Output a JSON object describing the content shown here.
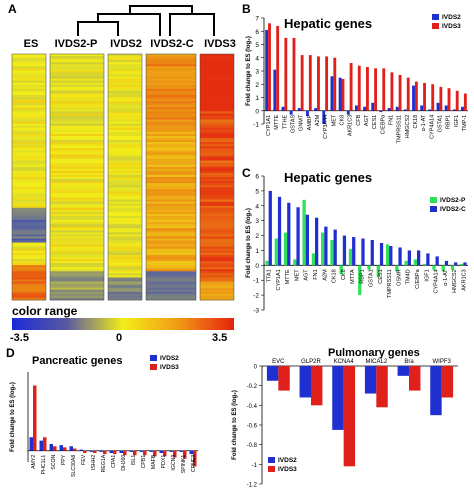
{
  "panels": {
    "A": {
      "letter": "A",
      "columns": [
        "ES",
        "IVDS2-P",
        "IVDS2",
        "IVDS2-C",
        "IVDS3"
      ],
      "color_range_label": "color range",
      "scale_ticks": [
        "-3.5",
        "0",
        "3.5"
      ],
      "colors": {
        "low": "#1a2bd6",
        "mid": "#f2ee18",
        "high": "#e5230f"
      }
    },
    "B": {
      "letter": "B"
    },
    "C": {
      "letter": "C"
    },
    "D": {
      "letter": "D"
    }
  },
  "chart_data": [
    {
      "id": "B",
      "type": "bar",
      "title": "Hepatic genes",
      "ylabel": "Fold change to ES (log₂)",
      "ylim": [
        -1,
        7
      ],
      "yticks": [
        -1,
        0,
        1,
        2,
        3,
        4,
        5,
        6,
        7
      ],
      "categories": [
        "CYP1A1",
        "MTTE",
        "TTHE",
        "GSTAS",
        "GNMT",
        "AMBP",
        "A2M",
        "CYP3A44",
        "MET",
        "CK8",
        "AKR1C3",
        "CFB",
        "AGT",
        "CES1",
        "C/EBPa",
        "FN1",
        "TMPRSS11",
        "HMGCS2",
        "CK18",
        "α-1-AT",
        "CYP4A14",
        "GSTA1",
        "RBP1",
        "IGF1",
        "TMP-1"
      ],
      "series": [
        {
          "name": "IVDS2",
          "color": "#1f2fd0",
          "values": [
            6.1,
            3.1,
            0.3,
            -0.3,
            0.2,
            -0.4,
            0.2,
            -1.0,
            2.6,
            2.5,
            -0.3,
            0.4,
            0.3,
            0.6,
            -0.1,
            0.2,
            0.3,
            0.1,
            1.9,
            0.4,
            0.1,
            0.6,
            0.4,
            0.1,
            0.3
          ]
        },
        {
          "name": "IVDS3",
          "color": "#e0201a",
          "values": [
            6.6,
            6.4,
            5.5,
            5.5,
            4.2,
            4.2,
            4.1,
            4.1,
            4.0,
            2.4,
            3.6,
            3.4,
            3.3,
            3.2,
            3.2,
            2.9,
            2.7,
            2.5,
            2.2,
            2.1,
            2.0,
            1.8,
            1.7,
            1.5,
            1.3
          ]
        }
      ]
    },
    {
      "id": "C",
      "type": "bar",
      "title": "Hepatic genes",
      "ylabel": "Fold change to ES (log₂)",
      "ylim": [
        -3,
        6
      ],
      "yticks": [
        -3,
        -2,
        -1,
        0,
        1,
        2,
        3,
        4,
        5,
        6
      ],
      "categories": [
        "TTA1",
        "CYP1A1",
        "MTTE",
        "MET",
        "AGT",
        "FN1",
        "A2M",
        "CK18",
        "CK8",
        "MTTA",
        "RBP1",
        "GSTA1",
        "CES1",
        "TMPRSS11",
        "OSMR",
        "TM4D",
        "C/EBPa",
        "IGF1",
        "CYP4A14",
        "α-1-AT",
        "HMGCS2",
        "AKR1C3"
      ],
      "series": [
        {
          "name": "IVDS2-P",
          "color": "#2ee05a",
          "values": [
            0.3,
            1.8,
            2.2,
            0.4,
            4.4,
            0.8,
            2.2,
            1.7,
            -0.6,
            1.1,
            -2.0,
            -0.3,
            -0.8,
            1.4,
            -0.4,
            0.3,
            0.4,
            0.1,
            -0.3,
            -0.4,
            -0.3,
            0.1
          ]
        },
        {
          "name": "IVDS2-C",
          "color": "#1f2fd0",
          "values": [
            5.0,
            4.6,
            4.2,
            3.9,
            3.4,
            3.2,
            2.6,
            2.4,
            2.0,
            1.9,
            1.8,
            1.7,
            1.5,
            1.3,
            1.2,
            1.0,
            1.0,
            0.8,
            0.6,
            0.3,
            0.2,
            0.2
          ]
        }
      ]
    },
    {
      "id": "D1",
      "type": "bar",
      "title": "Pancreatic genes",
      "ylabel": "Fold change to ES (log₂)",
      "ylim": [
        -0.5,
        3.5
      ],
      "categories": [
        "AMY2",
        "PHC1L1",
        "SCON",
        "PPY",
        "SLC30A8",
        "FEV",
        "ISHH2",
        "REG1A",
        "CPA1",
        "DHJ60",
        "ISL1",
        "CPB1",
        "MAFB",
        "PDX1",
        "IGCN3",
        "SPINK1",
        "CPNE3"
      ],
      "series": [
        {
          "name": "IVDS2",
          "color": "#1f2fd0",
          "values": [
            0.6,
            0.45,
            0.3,
            0.25,
            0.2,
            0.05,
            -0.05,
            -0.05,
            -0.1,
            -0.1,
            -0.05,
            -0.05,
            -0.05,
            -0.1,
            -0.05,
            -0.05,
            -0.15
          ]
        },
        {
          "name": "IVDS3",
          "color": "#e0201a",
          "values": [
            2.9,
            0.6,
            0.2,
            0.15,
            0.1,
            -0.1,
            -0.1,
            -0.15,
            -0.15,
            -0.2,
            -0.2,
            -0.2,
            -0.25,
            -0.25,
            -0.3,
            -0.35,
            -0.7
          ]
        }
      ]
    },
    {
      "id": "D2",
      "type": "bar",
      "title": "Pulmonary genes",
      "ylabel": "Fold change to ES (log₂)",
      "ylim": [
        -1.2,
        0
      ],
      "yticks": [
        -1.2,
        -1.0,
        -0.8,
        -0.6,
        -0.4,
        -0.2,
        0
      ],
      "categories": [
        "EVC",
        "GLP2R",
        "KCNA4",
        "MICAL2",
        "Bra",
        "WIPF3"
      ],
      "series": [
        {
          "name": "IVDS2",
          "color": "#1f2fd0",
          "values": [
            -0.15,
            -0.32,
            -0.65,
            -0.28,
            -0.1,
            -0.5
          ]
        },
        {
          "name": "IVDS3",
          "color": "#e0201a",
          "values": [
            -0.25,
            -0.4,
            -1.02,
            -0.42,
            -0.25,
            -0.32
          ]
        }
      ]
    }
  ]
}
